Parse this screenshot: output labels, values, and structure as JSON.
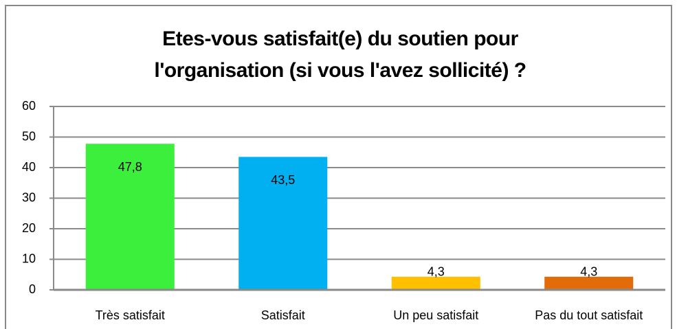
{
  "chart_data": {
    "type": "bar",
    "title": "Etes-vous satisfait(e) du soutien pour l'organisation (si vous l'avez sollicité) ?",
    "categories": [
      "Très satisfait",
      "Satisfait",
      "Un peu satisfait",
      "Pas du tout satisfait"
    ],
    "values": [
      47.8,
      43.5,
      4.3,
      4.3
    ],
    "value_labels": [
      "47,8",
      "43,5",
      "4,3",
      "4,3"
    ],
    "colors": [
      "#3cef3c",
      "#00b0f0",
      "#ffc000",
      "#e36c0a"
    ],
    "ylim": [
      0,
      60
    ],
    "yticks": [
      0,
      10,
      20,
      30,
      40,
      50,
      60
    ],
    "grid": true
  }
}
